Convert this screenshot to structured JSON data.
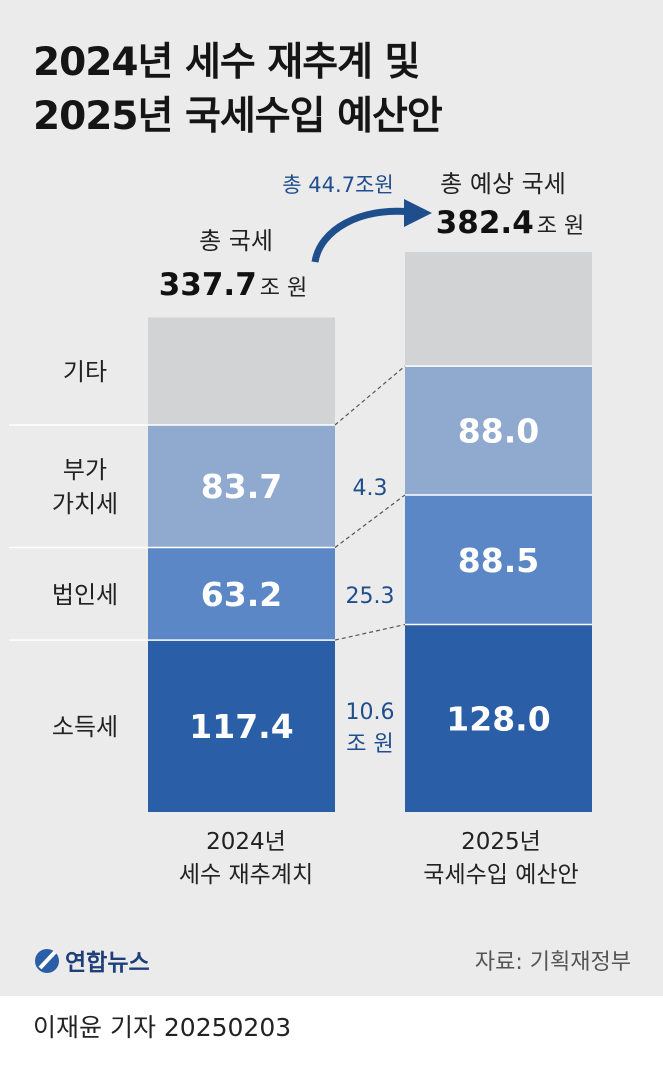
{
  "title_lines": [
    "2024년 세수 재추계 및",
    "2025년 국세수입 예산안"
  ],
  "chart_data": {
    "type": "bar",
    "stacked": true,
    "categories": [
      {
        "line1": "2024년",
        "line2": "세수 재추계치"
      },
      {
        "line1": "2025년",
        "line2": "국세수입 예산안"
      }
    ],
    "series": [
      {
        "name": "소득세",
        "values": [
          117.4,
          128.0
        ],
        "labels": [
          "117.4",
          "128.0"
        ],
        "color": "#2a5ea6"
      },
      {
        "name": "법인세",
        "values": [
          63.2,
          88.5
        ],
        "labels": [
          "63.2",
          "88.5"
        ],
        "color": "#5b87c6"
      },
      {
        "name": "부가가치세",
        "name_lines": [
          "부가",
          "가치세"
        ],
        "values": [
          83.7,
          88.0
        ],
        "labels": [
          "83.7",
          "88.0"
        ],
        "color": "#8fa9cf"
      },
      {
        "name": "기타",
        "values": [
          73.4,
          77.9
        ],
        "labels": [
          "",
          ""
        ],
        "color": "#d2d3d5"
      }
    ],
    "totals": [
      {
        "caption": "총 국세",
        "value": "337.7",
        "unit": "조 원"
      },
      {
        "caption": "총 예상 국세",
        "value": "382.4",
        "unit": "조 원"
      }
    ],
    "increase_total": "총 44.7조원",
    "increases": [
      {
        "series": "소득세",
        "lines": [
          "10.6",
          "조 원"
        ]
      },
      {
        "series": "법인세",
        "lines": [
          "25.3"
        ]
      },
      {
        "series": "부가가치세",
        "lines": [
          "4.3"
        ]
      }
    ],
    "ylim": [
      0,
      382.4
    ]
  },
  "colors": {
    "accent": "#1f4e8c",
    "label_dark": "#333333"
  },
  "footer": {
    "logo_icon": "yonhap-logo-icon",
    "logo_text": "연합뉴스",
    "source": "자료: 기획재정부"
  },
  "credit": "이재윤 기자  20250203"
}
